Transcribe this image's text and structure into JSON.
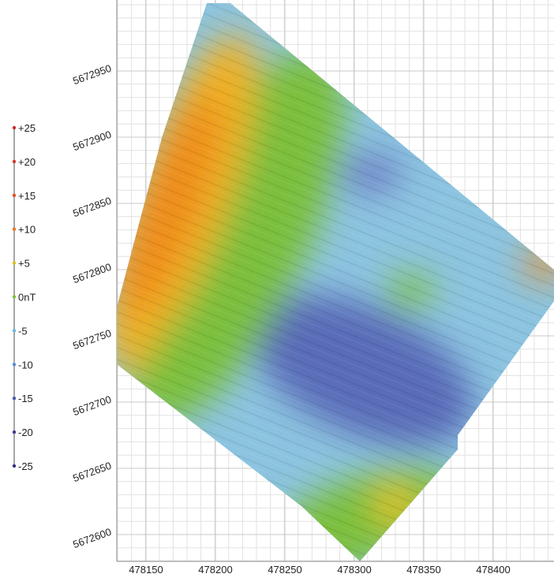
{
  "legend": {
    "labels": [
      "+25",
      "+20",
      "+15",
      "+10",
      "+5",
      "0nT",
      "-5",
      "-10",
      "-15",
      "-20",
      "-25"
    ]
  },
  "x_axis": {
    "labels": [
      "478150",
      "478200",
      "478250",
      "478300",
      "478350",
      "478400"
    ]
  },
  "y_axis": {
    "labels": [
      "5672950",
      "5672900",
      "5672850",
      "5672800",
      "5672750",
      "5672700",
      "5672650",
      "5672600"
    ]
  }
}
